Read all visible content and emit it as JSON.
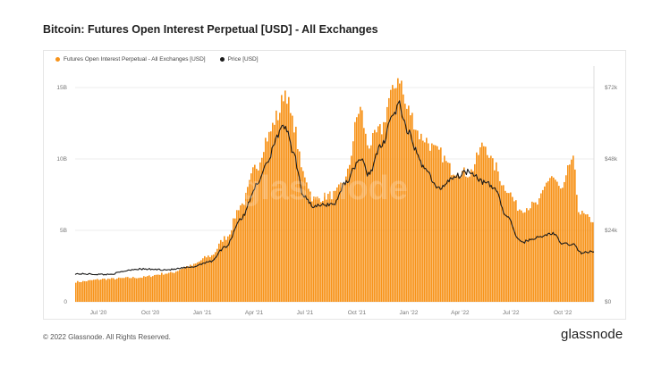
{
  "title": "Bitcoin: Futures Open Interest Perpetual [USD] - All Exchanges",
  "legend": {
    "series1": "Futures Open Interest Perpetual - All Exchanges [USD]",
    "series2": "Price [USD]"
  },
  "footer": {
    "copyright": "© 2022 Glassnode. All Rights Reserved.",
    "brand": "glassnode"
  },
  "watermark": "glassnode",
  "colors": {
    "open_interest": "#f7931a",
    "price": "#1a1a1a",
    "grid": "#ececec",
    "tick_text": "#777777"
  },
  "chart_data": {
    "type": "bar",
    "x_tick_labels": [
      "Jul '20",
      "Oct '20",
      "Jan '21",
      "Apr '21",
      "Jul '21",
      "Oct '21",
      "Jan '22",
      "Apr '22",
      "Jul '22",
      "Oct '22"
    ],
    "y_left_ticks": [
      "0",
      "5B",
      "10B",
      "15B"
    ],
    "y_right_ticks": [
      "$0",
      "$24k",
      "$48k",
      "$72k"
    ],
    "y_left_range": [
      0,
      16000000000
    ],
    "y_right_range": [
      0,
      76800
    ],
    "grid": true,
    "legend_position": "top-left",
    "series": [
      {
        "name": "Futures Open Interest Perpetual - All Exchanges [USD]",
        "axis": "left",
        "type": "bar",
        "x_range": [
          "2020-06",
          "2022-12"
        ],
        "keypoints_t_value": [
          [
            0.0,
            1.4
          ],
          [
            0.06,
            1.6
          ],
          [
            0.12,
            1.7
          ],
          [
            0.18,
            2.0
          ],
          [
            0.22,
            2.5
          ],
          [
            0.26,
            3.2
          ],
          [
            0.29,
            4.5
          ],
          [
            0.32,
            6.8
          ],
          [
            0.35,
            9.5
          ],
          [
            0.37,
            11.5
          ],
          [
            0.39,
            13.0
          ],
          [
            0.405,
            14.8
          ],
          [
            0.42,
            12.5
          ],
          [
            0.44,
            9.0
          ],
          [
            0.46,
            7.2
          ],
          [
            0.5,
            7.5
          ],
          [
            0.52,
            8.5
          ],
          [
            0.55,
            13.5
          ],
          [
            0.565,
            11.0
          ],
          [
            0.59,
            12.0
          ],
          [
            0.61,
            14.5
          ],
          [
            0.625,
            15.8
          ],
          [
            0.64,
            13.5
          ],
          [
            0.67,
            11.5
          ],
          [
            0.7,
            10.5
          ],
          [
            0.73,
            9.2
          ],
          [
            0.76,
            9.0
          ],
          [
            0.79,
            11.0
          ],
          [
            0.81,
            9.5
          ],
          [
            0.83,
            8.0
          ],
          [
            0.86,
            6.5
          ],
          [
            0.89,
            6.8
          ],
          [
            0.92,
            8.8
          ],
          [
            0.94,
            7.8
          ],
          [
            0.96,
            10.0
          ],
          [
            0.975,
            6.2
          ],
          [
            1.0,
            5.7
          ]
        ]
      },
      {
        "name": "Price [USD]",
        "axis": "right",
        "type": "line",
        "x_range": [
          "2020-06",
          "2022-12"
        ],
        "keypoints_t_value": [
          [
            0.0,
            9400
          ],
          [
            0.06,
            9200
          ],
          [
            0.12,
            11000
          ],
          [
            0.18,
            10800
          ],
          [
            0.22,
            11500
          ],
          [
            0.26,
            13500
          ],
          [
            0.29,
            18500
          ],
          [
            0.32,
            28000
          ],
          [
            0.35,
            39000
          ],
          [
            0.37,
            47000
          ],
          [
            0.39,
            56000
          ],
          [
            0.405,
            59000
          ],
          [
            0.42,
            50000
          ],
          [
            0.44,
            36000
          ],
          [
            0.46,
            32000
          ],
          [
            0.5,
            33000
          ],
          [
            0.52,
            40000
          ],
          [
            0.55,
            48000
          ],
          [
            0.565,
            43000
          ],
          [
            0.59,
            52000
          ],
          [
            0.61,
            62000
          ],
          [
            0.625,
            66000
          ],
          [
            0.64,
            57000
          ],
          [
            0.67,
            46000
          ],
          [
            0.7,
            38000
          ],
          [
            0.73,
            42000
          ],
          [
            0.76,
            44000
          ],
          [
            0.79,
            40000
          ],
          [
            0.81,
            38000
          ],
          [
            0.83,
            29000
          ],
          [
            0.86,
            20000
          ],
          [
            0.89,
            21500
          ],
          [
            0.92,
            23000
          ],
          [
            0.94,
            19500
          ],
          [
            0.96,
            19300
          ],
          [
            0.975,
            16500
          ],
          [
            1.0,
            16800
          ]
        ]
      }
    ]
  }
}
